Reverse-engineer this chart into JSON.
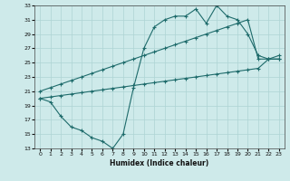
{
  "xlabel": "Humidex (Indice chaleur)",
  "bg_color": "#ceeaea",
  "line_color": "#1e6b6b",
  "grid_color": "#aed4d4",
  "xlim": [
    -0.5,
    23.5
  ],
  "ylim": [
    13,
    33
  ],
  "yticks": [
    13,
    15,
    17,
    19,
    21,
    23,
    25,
    27,
    29,
    31,
    33
  ],
  "xticks": [
    0,
    1,
    2,
    3,
    4,
    5,
    6,
    7,
    8,
    9,
    10,
    11,
    12,
    13,
    14,
    15,
    16,
    17,
    18,
    19,
    20,
    21,
    22,
    23
  ],
  "series": [
    {
      "x": [
        0,
        1,
        2,
        3,
        4,
        5,
        6,
        7,
        8,
        9,
        10,
        11,
        12,
        13,
        14,
        15,
        16,
        17,
        18,
        19,
        20,
        21,
        22,
        23
      ],
      "y": [
        20,
        19.5,
        17.5,
        16,
        15.5,
        14.5,
        14,
        13,
        15,
        21.5,
        27,
        30,
        31,
        31.5,
        31.5,
        32.5,
        30.5,
        33,
        31.5,
        31,
        29,
        26,
        25.5,
        25.5
      ]
    },
    {
      "x": [
        0,
        1,
        2,
        3,
        4,
        5,
        6,
        7,
        8,
        9,
        10,
        11,
        12,
        13,
        14,
        15,
        16,
        17,
        18,
        19,
        20,
        21,
        22,
        23
      ],
      "y": [
        21,
        21.5,
        22,
        22.5,
        23,
        23.5,
        24,
        24.5,
        25,
        25.5,
        26,
        26.5,
        27,
        27.5,
        28,
        28.5,
        29,
        29.5,
        30,
        30.5,
        31,
        25.5,
        25.5,
        25.5
      ]
    },
    {
      "x": [
        0,
        1,
        2,
        3,
        4,
        5,
        6,
        7,
        8,
        9,
        10,
        11,
        12,
        13,
        14,
        15,
        16,
        17,
        18,
        19,
        20,
        21,
        22,
        23
      ],
      "y": [
        20,
        20.2,
        20.4,
        20.6,
        20.8,
        21.0,
        21.2,
        21.4,
        21.6,
        21.8,
        22.0,
        22.2,
        22.4,
        22.6,
        22.8,
        23.0,
        23.2,
        23.4,
        23.6,
        23.8,
        24.0,
        24.2,
        25.5,
        26.0
      ]
    }
  ]
}
